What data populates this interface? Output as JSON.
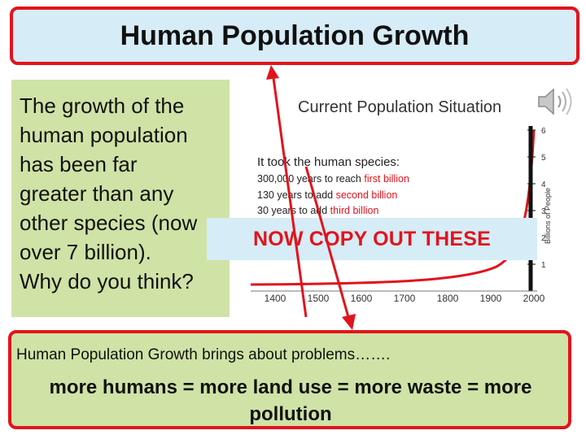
{
  "title": "Human Population Growth",
  "left_text": "The growth of the\nhuman population\nhas been far\ngreater than any\nother species (now\nover 7 billion).\nWhy do you think?",
  "overlay_label": "NOW COPY OUT THESE",
  "chart": {
    "title": "Current Population Situation",
    "heading": "It took the human species:",
    "lines": [
      {
        "prefix": "300,000 years to reach ",
        "highlight": "first billion"
      },
      {
        "prefix": "130 years to add ",
        "highlight": "second billion"
      },
      {
        "prefix": "30 years to add ",
        "highlight": "third billion"
      }
    ],
    "x_ticks": [
      "1400",
      "1500",
      "1600",
      "1700",
      "1800",
      "1900",
      "2000"
    ],
    "y_ticks": [
      "1",
      "2",
      "3",
      "4",
      "5",
      "6"
    ],
    "y_label": "Billions of People",
    "highlight_color": "#e1141c"
  },
  "bottom": {
    "line1": "Human Population Growth brings about problems…….",
    "line2": "more humans = more land use = more waste = more pollution"
  },
  "icons": {
    "speaker": "speaker-icon"
  }
}
